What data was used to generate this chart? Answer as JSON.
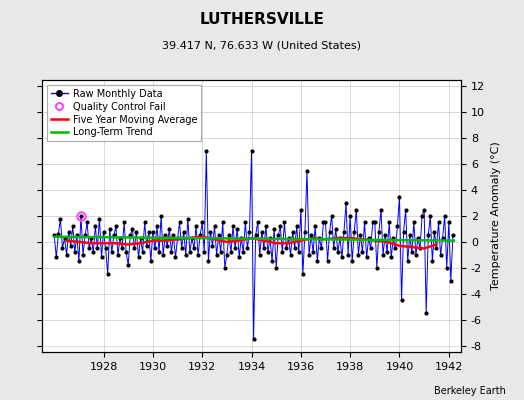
{
  "title": "LUTHERSVILLE",
  "subtitle": "39.417 N, 76.633 W (United States)",
  "ylabel": "Temperature Anomaly (°C)",
  "attribution": "Berkeley Earth",
  "xlim": [
    1925.5,
    1942.5
  ],
  "ylim": [
    -8.5,
    12.5
  ],
  "yticks": [
    -8,
    -6,
    -4,
    -2,
    0,
    2,
    4,
    6,
    8,
    10,
    12
  ],
  "xticks": [
    1928,
    1930,
    1932,
    1934,
    1936,
    1938,
    1940,
    1942
  ],
  "bg_color": "#e8e8e8",
  "plot_bg_color": "#ffffff",
  "raw_color": "#0000ff",
  "ma_color": "#ff0000",
  "trend_color": "#00bb00",
  "qc_color": "#ff44ff",
  "raw_data_x": [
    1926.0,
    1926.083,
    1926.167,
    1926.25,
    1926.333,
    1926.417,
    1926.5,
    1926.583,
    1926.667,
    1926.75,
    1926.833,
    1926.917,
    1927.0,
    1927.083,
    1927.167,
    1927.25,
    1927.333,
    1927.417,
    1927.5,
    1927.583,
    1927.667,
    1927.75,
    1927.833,
    1927.917,
    1928.0,
    1928.083,
    1928.167,
    1928.25,
    1928.333,
    1928.417,
    1928.5,
    1928.583,
    1928.667,
    1928.75,
    1928.833,
    1928.917,
    1929.0,
    1929.083,
    1929.167,
    1929.25,
    1929.333,
    1929.417,
    1929.5,
    1929.583,
    1929.667,
    1929.75,
    1929.833,
    1929.917,
    1930.0,
    1930.083,
    1930.167,
    1930.25,
    1930.333,
    1930.417,
    1930.5,
    1930.583,
    1930.667,
    1930.75,
    1930.833,
    1930.917,
    1931.0,
    1931.083,
    1931.167,
    1931.25,
    1931.333,
    1931.417,
    1931.5,
    1931.583,
    1931.667,
    1931.75,
    1931.833,
    1931.917,
    1932.0,
    1932.083,
    1932.167,
    1932.25,
    1932.333,
    1932.417,
    1932.5,
    1932.583,
    1932.667,
    1932.75,
    1932.833,
    1932.917,
    1933.0,
    1933.083,
    1933.167,
    1933.25,
    1933.333,
    1933.417,
    1933.5,
    1933.583,
    1933.667,
    1933.75,
    1933.833,
    1933.917,
    1934.0,
    1934.083,
    1934.167,
    1934.25,
    1934.333,
    1934.417,
    1934.5,
    1934.583,
    1934.667,
    1934.75,
    1934.833,
    1934.917,
    1935.0,
    1935.083,
    1935.167,
    1935.25,
    1935.333,
    1935.417,
    1935.5,
    1935.583,
    1935.667,
    1935.75,
    1935.833,
    1935.917,
    1936.0,
    1936.083,
    1936.167,
    1936.25,
    1936.333,
    1936.417,
    1936.5,
    1936.583,
    1936.667,
    1936.75,
    1936.833,
    1936.917,
    1937.0,
    1937.083,
    1937.167,
    1937.25,
    1937.333,
    1937.417,
    1937.5,
    1937.583,
    1937.667,
    1937.75,
    1937.833,
    1937.917,
    1938.0,
    1938.083,
    1938.167,
    1938.25,
    1938.333,
    1938.417,
    1938.5,
    1938.583,
    1938.667,
    1938.75,
    1938.833,
    1938.917,
    1939.0,
    1939.083,
    1939.167,
    1939.25,
    1939.333,
    1939.417,
    1939.5,
    1939.583,
    1939.667,
    1939.75,
    1939.833,
    1939.917,
    1940.0,
    1940.083,
    1940.167,
    1940.25,
    1940.333,
    1940.417,
    1940.5,
    1940.583,
    1940.667,
    1940.75,
    1940.833,
    1940.917,
    1941.0,
    1941.083,
    1941.167,
    1941.25,
    1941.333,
    1941.417,
    1941.5,
    1941.583,
    1941.667,
    1941.75,
    1941.833,
    1941.917,
    1942.0,
    1942.083,
    1942.167
  ],
  "raw_data_y": [
    0.5,
    -1.2,
    0.6,
    1.8,
    -0.5,
    0.3,
    -1.0,
    0.8,
    -0.3,
    1.2,
    -0.8,
    0.5,
    -1.5,
    2.0,
    -1.0,
    0.5,
    1.5,
    -0.5,
    0.3,
    -0.8,
    1.2,
    -0.5,
    1.8,
    -1.2,
    0.8,
    -0.5,
    -2.5,
    1.0,
    -0.8,
    0.5,
    1.2,
    -1.0,
    0.3,
    -0.5,
    1.5,
    -0.8,
    -1.8,
    0.5,
    1.0,
    -0.5,
    0.8,
    -1.2,
    0.3,
    -0.8,
    1.5,
    -0.3,
    0.8,
    -1.5,
    0.8,
    -0.5,
    1.2,
    -0.8,
    2.0,
    -1.0,
    0.5,
    -0.3,
    1.0,
    -0.8,
    0.5,
    -1.2,
    0.3,
    1.5,
    -0.5,
    0.8,
    -1.0,
    1.8,
    -0.8,
    0.3,
    -0.5,
    1.2,
    -1.0,
    0.5,
    1.5,
    -0.8,
    7.0,
    -1.5,
    0.8,
    -0.3,
    1.2,
    -1.0,
    0.5,
    -0.8,
    1.5,
    -2.0,
    -1.0,
    0.5,
    -0.8,
    1.2,
    -0.5,
    1.0,
    -1.2,
    0.3,
    -0.8,
    1.5,
    -0.5,
    0.8,
    7.0,
    -7.5,
    0.5,
    1.5,
    -1.0,
    0.8,
    -0.5,
    1.2,
    -0.8,
    0.3,
    -1.5,
    1.0,
    -2.0,
    0.5,
    1.2,
    -0.8,
    1.5,
    -0.5,
    0.3,
    -1.0,
    0.8,
    -0.5,
    1.2,
    -0.8,
    2.5,
    -2.5,
    0.8,
    5.5,
    -1.0,
    0.5,
    -0.8,
    1.2,
    -1.5,
    0.3,
    -0.5,
    1.5,
    1.5,
    -1.5,
    0.8,
    2.0,
    -0.5,
    1.0,
    -0.8,
    0.3,
    -1.2,
    0.8,
    3.0,
    -1.0,
    2.0,
    -1.5,
    0.8,
    2.5,
    -1.0,
    0.5,
    -0.8,
    1.5,
    -1.2,
    0.3,
    -0.5,
    1.5,
    1.5,
    -2.0,
    0.8,
    2.5,
    -1.0,
    0.5,
    -0.8,
    1.5,
    -1.2,
    0.3,
    -0.5,
    1.2,
    3.5,
    -4.5,
    0.8,
    2.5,
    -1.5,
    0.5,
    -0.8,
    1.5,
    -1.0,
    0.3,
    -0.5,
    2.0,
    2.5,
    -5.5,
    0.5,
    2.0,
    -1.5,
    0.8,
    -0.5,
    1.5,
    -1.0,
    0.3,
    2.0,
    -2.0,
    1.5,
    -3.0,
    0.5
  ],
  "qc_x": [
    1927.083
  ],
  "qc_y": [
    2.0
  ],
  "ma_x": [
    1926.5,
    1927.0,
    1927.5,
    1928.0,
    1928.5,
    1929.0,
    1929.5,
    1930.0,
    1930.5,
    1931.0,
    1931.5,
    1932.0,
    1932.5,
    1933.0,
    1933.5,
    1934.0,
    1934.5,
    1935.0,
    1935.5,
    1936.0,
    1936.5,
    1937.0,
    1937.5,
    1938.0,
    1938.5,
    1939.0,
    1939.5,
    1940.0,
    1940.5,
    1941.0,
    1941.5
  ],
  "ma_y": [
    0.1,
    0.0,
    -0.1,
    -0.1,
    -0.1,
    -0.2,
    -0.1,
    0.1,
    0.1,
    0.2,
    0.3,
    0.4,
    0.2,
    0.0,
    0.1,
    0.3,
    0.1,
    -0.1,
    -0.1,
    0.1,
    0.3,
    0.2,
    0.3,
    0.3,
    0.2,
    0.1,
    0.0,
    -0.3,
    -0.4,
    -0.5,
    -0.2
  ],
  "trend_x": [
    1926.0,
    1942.2
  ],
  "trend_y": [
    0.4,
    0.1
  ],
  "figwidth": 5.24,
  "figheight": 4.0,
  "dpi": 100
}
